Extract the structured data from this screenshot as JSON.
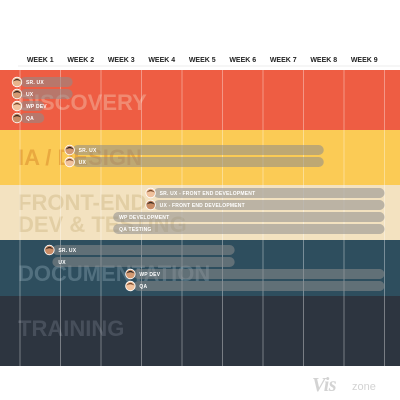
{
  "chart_data": {
    "type": "gantt",
    "x_categories": [
      "WEEK 1",
      "WEEK 2",
      "WEEK 3",
      "WEEK 4",
      "WEEK 5",
      "WEEK 6",
      "WEEK 7",
      "WEEK 8",
      "WEEK 9"
    ],
    "grid": true,
    "phases": [
      {
        "name": "DISCOVERY",
        "color": "#ee5d43",
        "text_color": "#f08a72",
        "tasks": [
          {
            "label": "SR. UX",
            "start_week": 1,
            "end_week": 2.3
          },
          {
            "label": "UX",
            "start_week": 1,
            "end_week": 2.3
          },
          {
            "label": "WP DEV",
            "start_week": 1,
            "end_week": 1.6
          },
          {
            "label": "QA",
            "start_week": 1,
            "end_week": 1.6
          }
        ]
      },
      {
        "name": "IA / DESIGN",
        "color": "#fbcb55",
        "text_color": "#e9a93f",
        "tasks": [
          {
            "label": "SR. UX",
            "start_week": 2.3,
            "end_week": 8.5
          },
          {
            "label": "UX",
            "start_week": 2.3,
            "end_week": 8.5
          }
        ]
      },
      {
        "name": "FRONT-END DEV & TESTING",
        "color": "#f3e2c0",
        "text_color": "#e2cea4",
        "tasks": [
          {
            "label": "SR. UX - FRONT END DEVELOPMENT",
            "start_week": 4.3,
            "end_week": 10
          },
          {
            "label": "UX - FRONT END DEVELOPMENT",
            "start_week": 4.3,
            "end_week": 10
          },
          {
            "label": "WP DEVELOPMENT",
            "start_week": 3.3,
            "end_week": 10
          },
          {
            "label": "QA TESTING",
            "start_week": 3.3,
            "end_week": 10
          }
        ]
      },
      {
        "name": "DOCUMENTATION",
        "color": "#2e4e5e",
        "text_color": "#52707f",
        "tasks": [
          {
            "label": "SR. UX",
            "start_week": 1.8,
            "end_week": 6.3
          },
          {
            "label": "UX",
            "start_week": 1.8,
            "end_week": 6.3
          },
          {
            "label": "WP DEV",
            "start_week": 3.8,
            "end_week": 10
          },
          {
            "label": "QA",
            "start_week": 3.8,
            "end_week": 10
          }
        ]
      },
      {
        "name": "TRAINING",
        "color": "#2d3540",
        "text_color": "#474f5b",
        "tasks": []
      }
    ]
  },
  "logo": {
    "text_a": "Vis",
    "text_b": "zone"
  }
}
